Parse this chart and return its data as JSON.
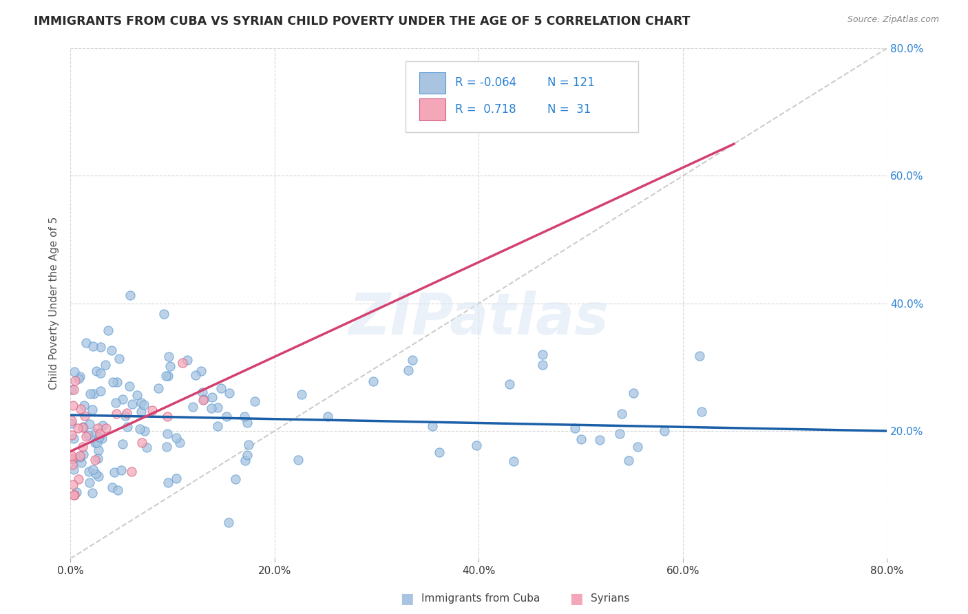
{
  "title": "IMMIGRANTS FROM CUBA VS SYRIAN CHILD POVERTY UNDER THE AGE OF 5 CORRELATION CHART",
  "source": "Source: ZipAtlas.com",
  "ylabel": "Child Poverty Under the Age of 5",
  "xlim": [
    0,
    0.8
  ],
  "ylim": [
    0,
    0.8
  ],
  "yticks": [
    0.0,
    0.2,
    0.4,
    0.6,
    0.8
  ],
  "ytick_labels": [
    "",
    "20.0%",
    "40.0%",
    "60.0%",
    "80.0%"
  ],
  "xtick_labels": [
    "0.0%",
    "20.0%",
    "40.0%",
    "60.0%",
    "80.0%"
  ],
  "xticks": [
    0.0,
    0.2,
    0.4,
    0.6,
    0.8
  ],
  "cuba_R": "-0.064",
  "cuba_N": "121",
  "syria_R": "0.718",
  "syria_N": "31",
  "cuba_color": "#a8c4e0",
  "cuba_color_dark": "#5b9bd5",
  "syria_color": "#f4a7b9",
  "syria_color_dark": "#d45f80",
  "trend_cuba_color": "#1a5fa8",
  "trend_syria_color": "#d44070",
  "legend_cuba": "Immigrants from Cuba",
  "legend_syria": "Syrians",
  "background_color": "#ffffff",
  "grid_color": "#cccccc",
  "watermark": "ZIPatlas",
  "title_color": "#2a2a2a",
  "source_color": "#888888",
  "ylabel_color": "#555555",
  "raxis_color": "#2a82d4",
  "legend_text_color": "#2a82d4",
  "diag_color": "#c0c0c0",
  "cuba_trend_start_x": 0.0,
  "cuba_trend_start_y": 0.225,
  "cuba_trend_end_x": 0.8,
  "cuba_trend_end_y": 0.2,
  "syria_trend_start_x": 0.0,
  "syria_trend_start_y": 0.168,
  "syria_trend_end_x": 0.65,
  "syria_trend_end_y": 0.65
}
